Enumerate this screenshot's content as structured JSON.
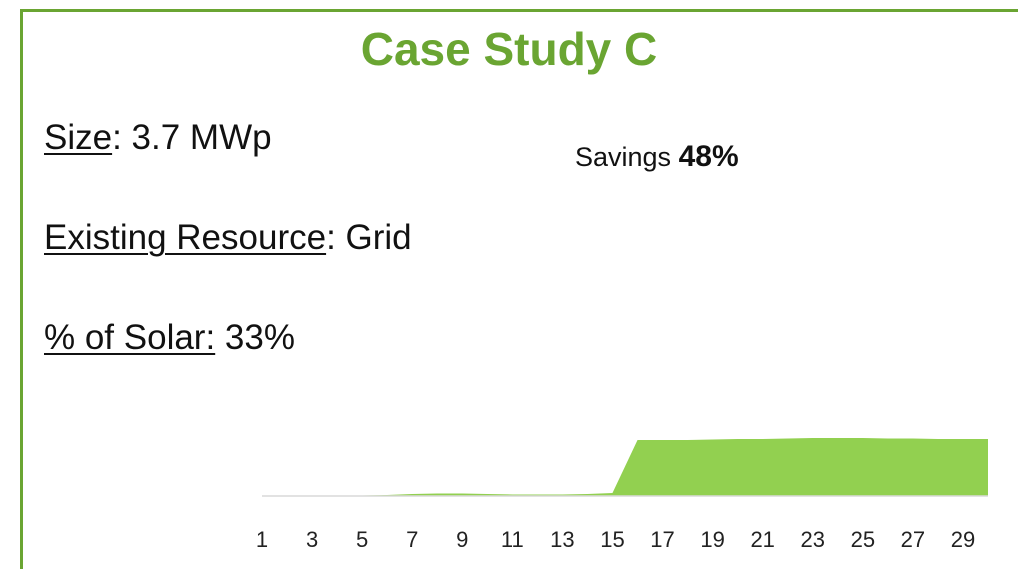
{
  "title": "Case Study C",
  "facts": [
    {
      "label": "Size",
      "value": ": 3.7 MWp"
    },
    {
      "label": "Existing Resource",
      "value": ": Grid"
    },
    {
      "label": "% of Solar:",
      "value": " 33%"
    }
  ],
  "savings": {
    "label": "Savings",
    "value": "48%"
  },
  "chart_data": {
    "type": "area",
    "color": "#92d050",
    "categories": [
      "1",
      null,
      "3",
      null,
      "5",
      null,
      "7",
      null,
      "9",
      null,
      "11",
      null,
      "13",
      null,
      "15",
      null,
      "17",
      null,
      "19",
      null,
      "21",
      null,
      "23",
      null,
      "25",
      null,
      "27",
      null,
      "29",
      null
    ],
    "values": [
      0.5,
      0.5,
      0.5,
      0.5,
      0.5,
      1,
      2,
      2.5,
      2.5,
      2,
      1.5,
      1.5,
      1.5,
      2,
      3,
      56,
      56,
      56,
      56.5,
      57,
      57,
      57.5,
      58,
      58,
      58,
      57.5,
      57.5,
      57,
      57,
      57
    ],
    "ylim": [
      0,
      60
    ]
  }
}
